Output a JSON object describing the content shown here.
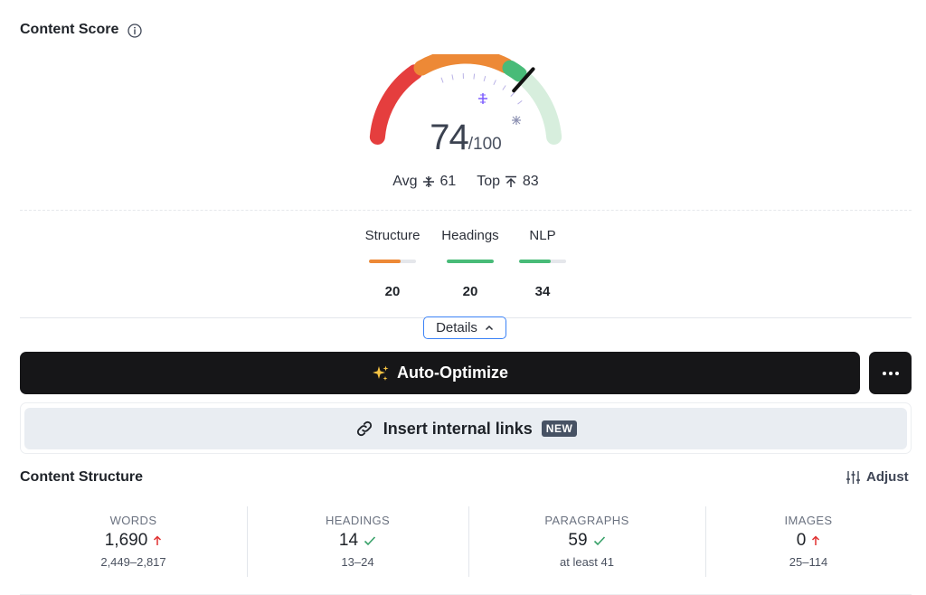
{
  "content_score": {
    "title": "Content Score",
    "score": "74",
    "score_max": "/100",
    "score_value": 74,
    "avg_label": "Avg",
    "avg_value": "61",
    "top_label": "Top",
    "top_value": "83",
    "colors": {
      "red": "#e53e3e",
      "orange": "#ed8936",
      "green": "#48bb78",
      "light_green": "#d7eedd",
      "needle": "#111111"
    }
  },
  "metrics": [
    {
      "label": "Structure",
      "value": "20",
      "fill_fraction": 0.68,
      "color": "#ed8936"
    },
    {
      "label": "Headings",
      "value": "20",
      "fill_fraction": 1.0,
      "color": "#48bb78"
    },
    {
      "label": "NLP",
      "value": "34",
      "fill_fraction": 0.68,
      "color": "#48bb78"
    }
  ],
  "details_button": {
    "label": "Details"
  },
  "auto_optimize": {
    "label": "Auto-Optimize",
    "icon": "sparkles-icon"
  },
  "more_button": {
    "label": "···"
  },
  "internal_links": {
    "label": "Insert internal links",
    "badge": "NEW",
    "icon": "link-icon"
  },
  "content_structure": {
    "title": "Content Structure",
    "adjust_label": "Adjust",
    "stats": [
      {
        "label": "WORDS",
        "value": "1,690",
        "status": "up-arrow",
        "range": "2,449–2,817"
      },
      {
        "label": "HEADINGS",
        "value": "14",
        "status": "check",
        "range": "13–24"
      },
      {
        "label": "PARAGRAPHS",
        "value": "59",
        "status": "check",
        "range": "at least 41"
      },
      {
        "label": "IMAGES",
        "value": "0",
        "status": "up-arrow",
        "range": "25–114"
      }
    ]
  }
}
